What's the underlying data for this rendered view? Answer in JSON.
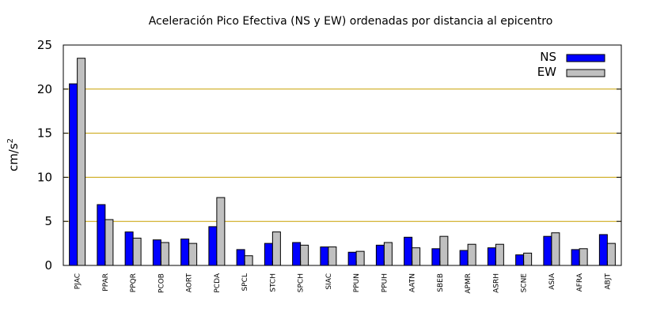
{
  "chart_data": {
    "type": "bar",
    "title": "Aceleración Pico Efectiva (NS y EW) ordenadas por distancia al epicentro",
    "xlabel": "",
    "ylabel": "cm/s",
    "ylabel_superscript": "2",
    "ylim": [
      0,
      25
    ],
    "yticks": [
      "0",
      "5",
      "10",
      "15",
      "20",
      "25"
    ],
    "grid": "horizontal",
    "legend_position": "top-right",
    "categories": [
      "PJAC",
      "PPAR",
      "PPQR",
      "PCOB",
      "AORT",
      "PCDA",
      "SPCL",
      "STCH",
      "SPCH",
      "SIAC",
      "PPUN",
      "PPUH",
      "AATN",
      "SBEB",
      "APMR",
      "ASRH",
      "SCNE",
      "ASIA",
      "AFRA",
      "ABJT"
    ],
    "series": [
      {
        "name": "NS",
        "color": "#0000ff",
        "values": [
          20.6,
          6.9,
          3.8,
          2.9,
          3.0,
          4.4,
          1.8,
          2.5,
          2.6,
          2.1,
          1.5,
          2.3,
          3.2,
          1.9,
          1.7,
          2.0,
          1.2,
          3.3,
          1.8,
          3.5
        ]
      },
      {
        "name": "EW",
        "color": "#c0c0c0",
        "values": [
          23.5,
          5.2,
          3.1,
          2.6,
          2.5,
          7.7,
          1.1,
          3.8,
          2.3,
          2.1,
          1.6,
          2.6,
          2.0,
          3.3,
          2.4,
          2.4,
          1.4,
          3.7,
          1.9,
          2.5
        ]
      }
    ],
    "grid_color": "#c8a000"
  }
}
